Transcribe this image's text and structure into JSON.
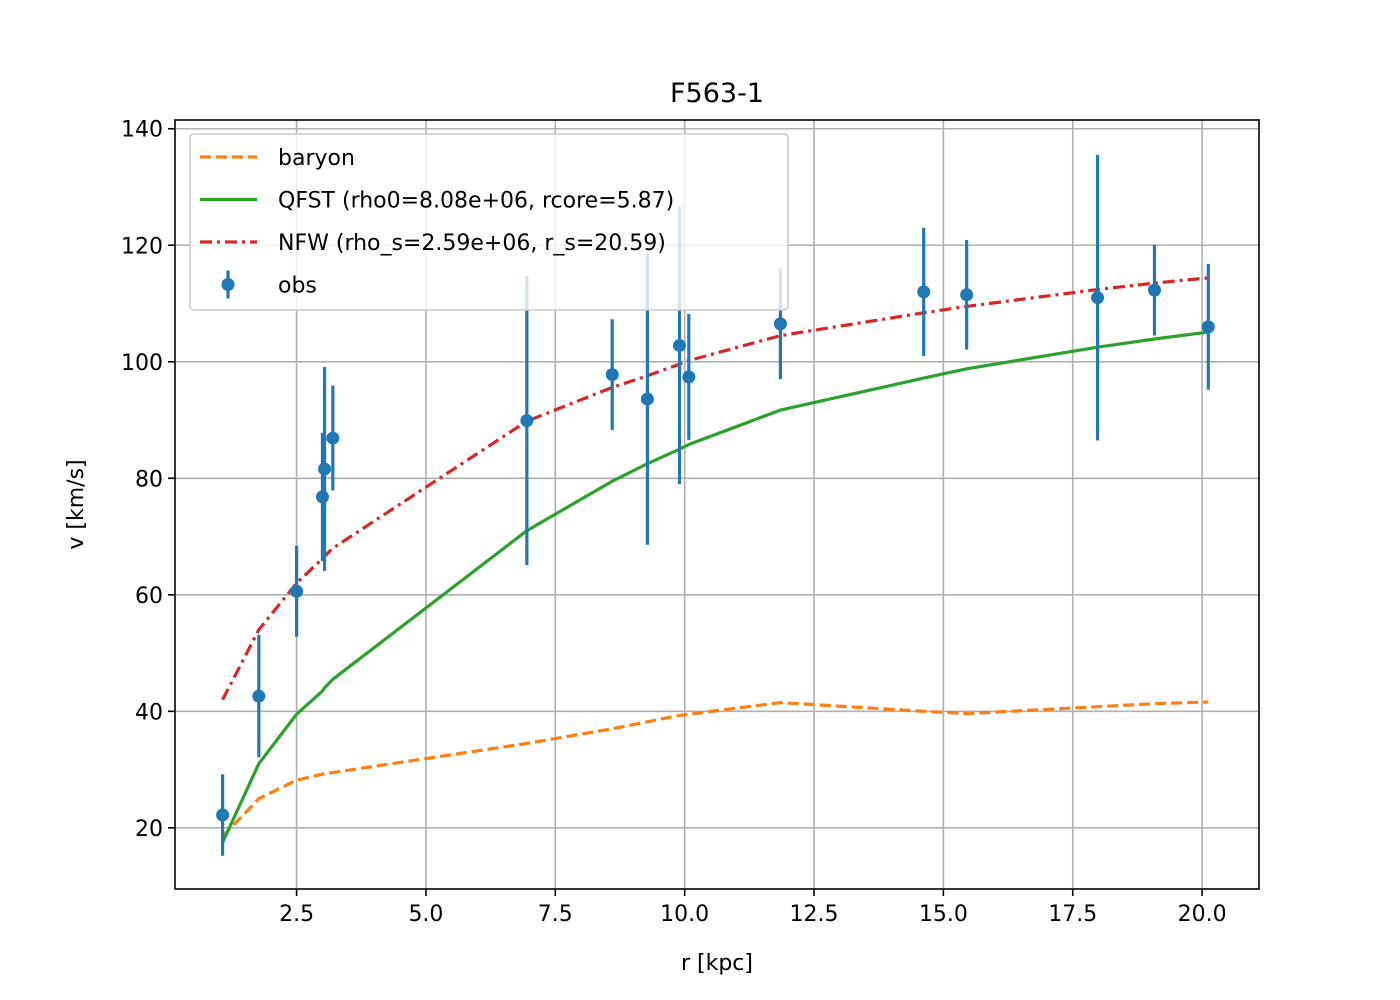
{
  "chart_data": {
    "type": "line",
    "title": "F563-1",
    "xlabel": "r [kpc]",
    "ylabel": "v [km/s]",
    "xlim": [
      0.15,
      21.1
    ],
    "ylim": [
      9.5,
      141.5
    ],
    "xticks": [
      2.5,
      5.0,
      7.5,
      10.0,
      12.5,
      15.0,
      17.5,
      20.0
    ],
    "xtick_labels": [
      "2.5",
      "5.0",
      "7.5",
      "10.0",
      "12.5",
      "15.0",
      "17.5",
      "20.0"
    ],
    "yticks": [
      20,
      40,
      60,
      80,
      100,
      120,
      140
    ],
    "ytick_labels": [
      "20",
      "40",
      "60",
      "80",
      "100",
      "120",
      "140"
    ],
    "grid": true,
    "legend_position": "upper left",
    "x": [
      1.07,
      1.77,
      2.5,
      3.0,
      3.04,
      3.2,
      6.95,
      8.6,
      9.28,
      9.9,
      10.08,
      11.85,
      14.62,
      15.45,
      17.98,
      19.08,
      20.12
    ],
    "series": [
      {
        "name": "baryon",
        "kind": "line",
        "style": "dashed",
        "color": "#ff7f0e",
        "values": [
          18.5,
          25.0,
          28.2,
          29.2,
          29.3,
          29.5,
          34.5,
          37.0,
          38.2,
          39.3,
          39.5,
          41.5,
          40.0,
          39.6,
          40.8,
          41.3,
          41.6
        ]
      },
      {
        "name": "QFST (rho0=8.08e+06, rcore=5.87)",
        "kind": "line",
        "style": "solid",
        "color": "#2ca02c",
        "values": [
          17.5,
          31.0,
          39.5,
          43.5,
          44.0,
          45.5,
          71.0,
          79.5,
          82.5,
          85.0,
          85.8,
          91.7,
          97.2,
          98.8,
          102.5,
          103.9,
          105.1
        ]
      },
      {
        "name": "NFW (rho_s=2.59e+06, r_s=20.59)",
        "kind": "line",
        "style": "dashdot",
        "color": "#d62728",
        "values": [
          42.0,
          54.0,
          62.0,
          66.2,
          66.6,
          68.0,
          89.8,
          95.6,
          97.6,
          99.6,
          100.2,
          104.5,
          108.4,
          109.5,
          112.4,
          113.5,
          114.4
        ]
      },
      {
        "name": "obs",
        "kind": "errorbar",
        "color": "#1f77b4",
        "values": [
          22.2,
          42.6,
          60.6,
          76.8,
          81.6,
          86.9,
          89.9,
          97.8,
          93.6,
          102.8,
          97.4,
          106.5,
          112.0,
          111.5,
          111.0,
          112.3,
          106.0
        ],
        "errors": [
          7.0,
          10.5,
          7.8,
          11.0,
          17.5,
          9.0,
          24.8,
          9.5,
          25.0,
          23.8,
          10.8,
          9.5,
          11.0,
          9.4,
          24.5,
          7.8,
          10.8
        ]
      }
    ]
  }
}
